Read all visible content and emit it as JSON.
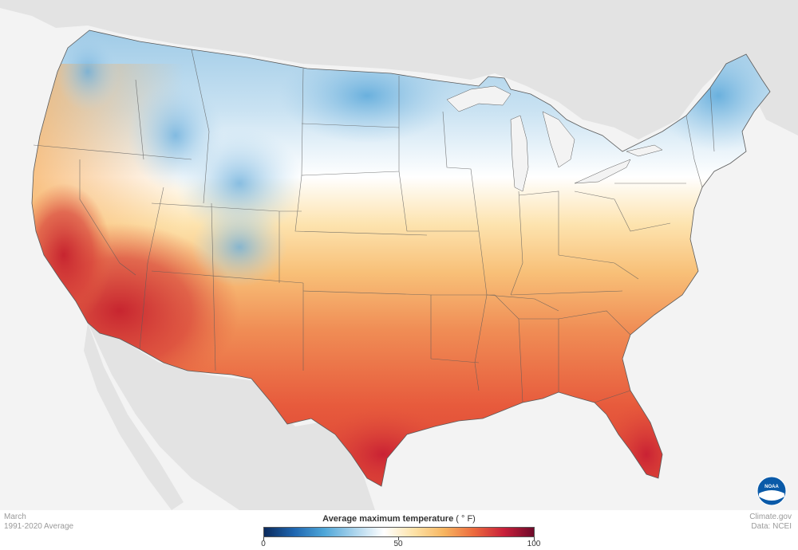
{
  "map": {
    "month": "March",
    "period": "1991-2020 Average",
    "source_site": "Climate.gov",
    "source_data": "Data: NCEI",
    "logo_text": "NOAA"
  },
  "legend": {
    "title": "Average maximum temperature",
    "unit": "( ° F)",
    "min_label": "0",
    "mid_label": "50",
    "max_label": "100",
    "range": [
      0,
      100
    ],
    "colors": [
      "#0b2a5c",
      "#1f66b0",
      "#4ea6d8",
      "#a9d3ec",
      "#ffffff",
      "#fde2a7",
      "#f7b560",
      "#ec6a3e",
      "#c8203a",
      "#6e0a2a"
    ]
  },
  "colors": {
    "land_background": "#e1e1e1",
    "water_background": "#f3f3f3",
    "cold": "#6fb3dd",
    "cool": "#cfe6f4",
    "neutral": "#ffffff",
    "warm": "#fbd08a",
    "hot": "#ee7a48",
    "very_hot": "#d23a35",
    "boundary": "#5a5a5a"
  }
}
